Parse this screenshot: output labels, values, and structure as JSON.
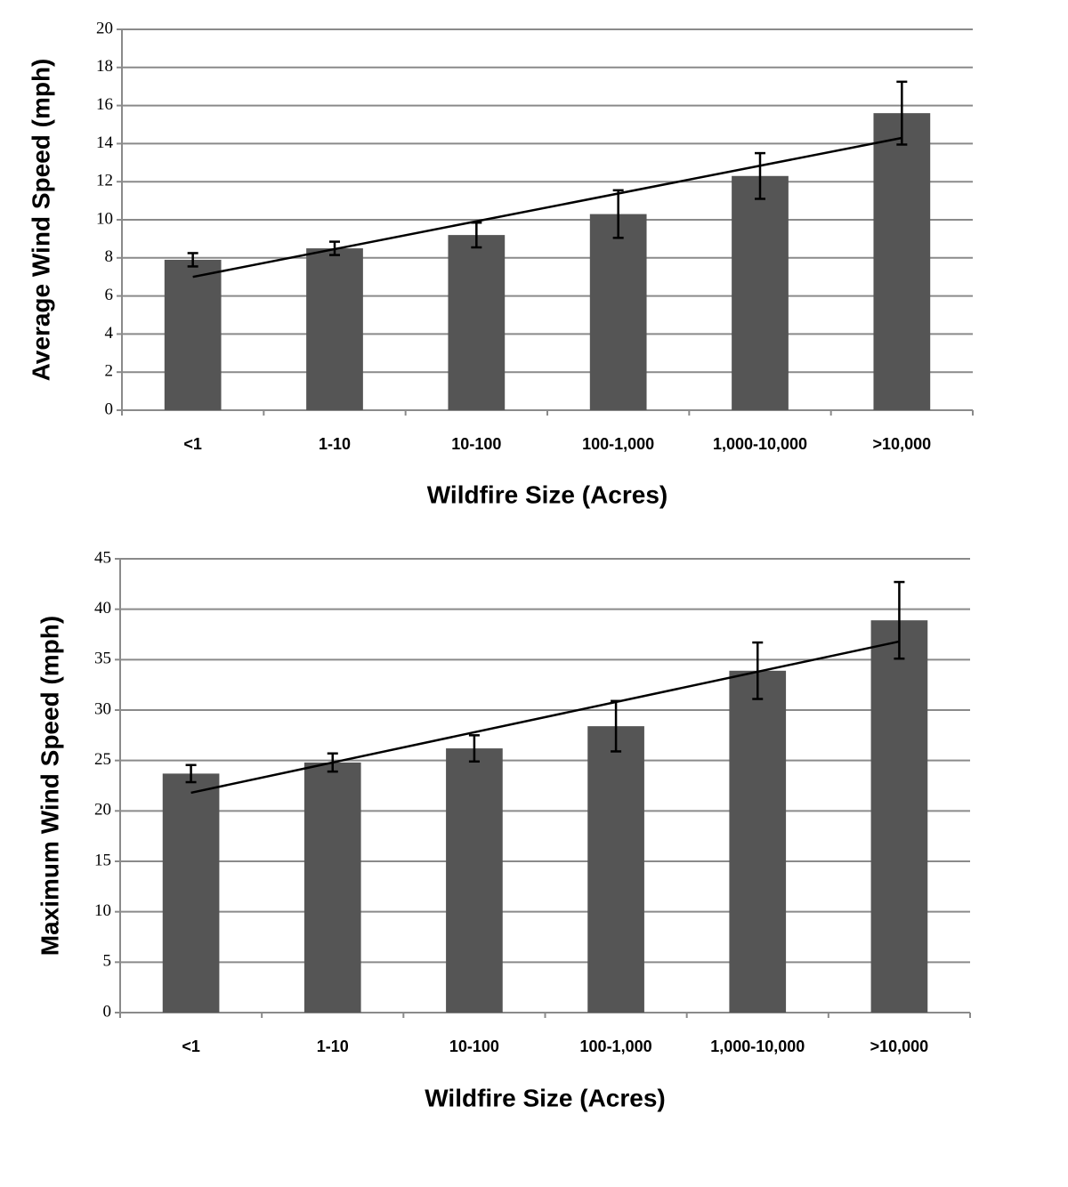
{
  "chart_data": [
    {
      "type": "bar",
      "ylabel": "Average Wind Speed (mph)",
      "xlabel": "Wildfire Size (Acres)",
      "categories": [
        "<1",
        "1-10",
        "10-100",
        "100-1,000",
        "1,000-10,000",
        ">10,000"
      ],
      "values": [
        7.9,
        8.5,
        9.2,
        10.3,
        12.3,
        15.6
      ],
      "errors": [
        0.35,
        0.35,
        0.65,
        1.25,
        1.2,
        1.65
      ],
      "trendline": {
        "start": 7.0,
        "end": 14.3
      },
      "color": "#555555",
      "ylim": [
        0,
        20
      ],
      "yticks": [
        0,
        2,
        4,
        6,
        8,
        10,
        12,
        14,
        16,
        18,
        20
      ],
      "grid": true
    },
    {
      "type": "bar",
      "ylabel": "Maximum Wind Speed (mph)",
      "xlabel": "Wildfire Size (Acres)",
      "categories": [
        "<1",
        "1-10",
        "10-100",
        "100-1,000",
        "1,000-10,000",
        ">10,000"
      ],
      "values": [
        23.7,
        24.8,
        26.2,
        28.4,
        33.9,
        38.9
      ],
      "errors": [
        0.85,
        0.9,
        1.3,
        2.5,
        2.8,
        3.8
      ],
      "trendline": {
        "start": 21.8,
        "end": 36.8
      },
      "color": "#555555",
      "ylim": [
        0,
        45
      ],
      "yticks": [
        0,
        5,
        10,
        15,
        20,
        25,
        30,
        35,
        40,
        45
      ],
      "grid": true
    }
  ]
}
